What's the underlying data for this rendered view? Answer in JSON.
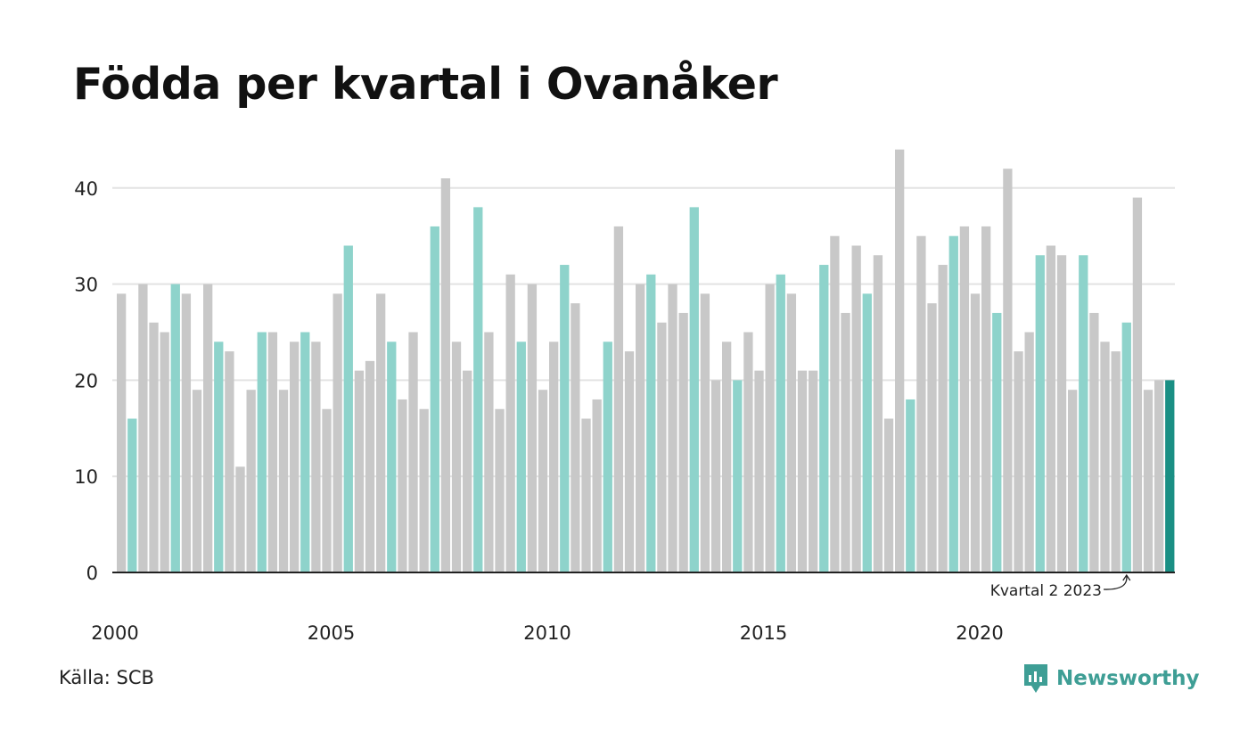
{
  "title": "Födda per kvartal i Ovanåker",
  "source": "Källa: SCB",
  "brand": {
    "name": "Newsworthy",
    "icon": "newsworthy-logo-icon"
  },
  "colors": {
    "other_quarters": "#c8c8c8",
    "same_quarter": "#8ed3cb",
    "latest": "#1a8f84",
    "grid": "#e3e3e3",
    "axis": "#222222"
  },
  "chart_data": {
    "type": "bar",
    "title": "Födda per kvartal i Ovanåker",
    "xlabel": "",
    "ylabel": "",
    "ylim": [
      0,
      44
    ],
    "yticks": [
      0,
      10,
      20,
      30,
      40
    ],
    "xtick_labels": [
      "2000",
      "2005",
      "2010",
      "2015",
      "2020"
    ],
    "grid": true,
    "annotation": "Kvartal 2 2023",
    "start_year": 2000,
    "highlight_quarter": 2,
    "values": [
      29,
      16,
      30,
      26,
      25,
      30,
      29,
      19,
      30,
      24,
      23,
      11,
      19,
      25,
      25,
      19,
      24,
      25,
      24,
      17,
      29,
      34,
      21,
      22,
      29,
      24,
      18,
      25,
      17,
      36,
      41,
      24,
      21,
      38,
      25,
      17,
      31,
      24,
      30,
      19,
      24,
      32,
      28,
      16,
      18,
      24,
      36,
      23,
      30,
      31,
      26,
      30,
      27,
      38,
      29,
      20,
      24,
      20,
      25,
      21,
      30,
      31,
      29,
      21,
      21,
      32,
      35,
      27,
      34,
      29,
      33,
      16,
      44,
      18,
      35,
      28,
      32,
      35,
      36,
      29,
      36,
      27,
      42,
      23,
      25,
      33,
      34,
      33,
      19,
      33,
      27,
      24,
      23,
      26,
      39,
      19,
      20,
      20
    ]
  }
}
